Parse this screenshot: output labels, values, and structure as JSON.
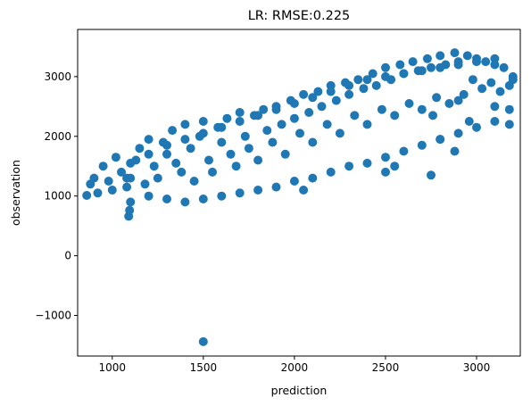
{
  "chart_data": {
    "type": "scatter",
    "title": "LR: RMSE:0.225",
    "xlabel": "prediction",
    "ylabel": "observation",
    "xlim": [
      810,
      3240
    ],
    "ylim": [
      -1680,
      3790
    ],
    "xticks": [
      {
        "value": 1000,
        "label": "1000"
      },
      {
        "value": 1500,
        "label": "1500"
      },
      {
        "value": 2000,
        "label": "2000"
      },
      {
        "value": 2500,
        "label": "2500"
      },
      {
        "value": 3000,
        "label": "3000"
      }
    ],
    "yticks": [
      {
        "value": -1000,
        "label": "−1000"
      },
      {
        "value": 0,
        "label": "0"
      },
      {
        "value": 1000,
        "label": "1000"
      },
      {
        "value": 2000,
        "label": "2000"
      },
      {
        "value": 3000,
        "label": "3000"
      }
    ],
    "grid": false,
    "legend": "none",
    "marker_color": "#1f77b4",
    "series": [
      {
        "x": [
          860,
          880,
          900,
          920,
          950,
          980,
          1000,
          1020,
          1050,
          1080,
          1100,
          1130,
          1150,
          1180,
          1200,
          1230,
          1250,
          1280,
          1300,
          1330,
          1350,
          1380,
          1400,
          1430,
          1450,
          1480,
          1500,
          1530,
          1550,
          1580,
          1600,
          1630,
          1650,
          1680,
          1700,
          1730,
          1750,
          1780,
          1800,
          1830,
          1850,
          1880,
          1900,
          1930,
          1950,
          1980,
          2000,
          2030,
          2050,
          2080,
          2100,
          2130,
          2150,
          2180,
          2200,
          2230,
          2250,
          2280,
          2300,
          2330,
          2350,
          2380,
          2400,
          2430,
          2450,
          2480,
          2500,
          2530,
          2550,
          2580,
          2600,
          2630,
          2650,
          2680,
          2700,
          2730,
          2750,
          2780,
          2800,
          2830,
          2850,
          2880,
          2900,
          2930,
          2950,
          2980,
          3000,
          3030,
          3050,
          3080,
          3100,
          3130,
          3150,
          3180,
          3200,
          1080,
          1100,
          1200,
          1300,
          1400,
          1500,
          1600,
          1700,
          1800,
          1900,
          2000,
          2100,
          2200,
          2300,
          2400,
          2500,
          2600,
          2700,
          2800,
          2900,
          3000,
          3100,
          1100,
          1200,
          1300,
          1400,
          1500,
          1600,
          1700,
          1800,
          1900,
          2000,
          2100,
          2200,
          2300,
          2400,
          2500,
          2600,
          2700,
          2800,
          2900,
          3000,
          3100,
          1500,
          2050,
          2500,
          2550,
          2750,
          2800,
          2880,
          2900,
          3100,
          3180,
          3180,
          3200,
          2960,
          2760,
          1090,
          1095
        ],
        "y": [
          1010,
          1200,
          1300,
          1050,
          1500,
          1250,
          1100,
          1650,
          1400,
          1150,
          1300,
          1600,
          1800,
          1200,
          1950,
          1500,
          1300,
          1900,
          1700,
          2100,
          1550,
          1400,
          2200,
          1800,
          1250,
          2000,
          2250,
          1600,
          1400,
          2150,
          1900,
          2300,
          1700,
          1500,
          2400,
          2000,
          1800,
          2350,
          1600,
          2450,
          2100,
          1900,
          2500,
          2200,
          1700,
          2600,
          2300,
          2050,
          2700,
          2400,
          1900,
          2750,
          2500,
          2200,
          2850,
          2600,
          2050,
          2900,
          2700,
          2350,
          2950,
          2800,
          2200,
          3050,
          2850,
          2450,
          3150,
          2950,
          2350,
          3200,
          3050,
          2550,
          3250,
          3100,
          2450,
          3300,
          3150,
          2650,
          3350,
          3200,
          2550,
          3400,
          3250,
          2700,
          3350,
          2950,
          3300,
          2800,
          3250,
          2900,
          3200,
          2750,
          3150,
          2850,
          3000,
          1300,
          900,
          1000,
          950,
          900,
          950,
          1000,
          1050,
          1100,
          1150,
          1250,
          1300,
          1400,
          1500,
          1550,
          1650,
          1750,
          1850,
          1950,
          2050,
          2150,
          2250,
          1550,
          1700,
          1850,
          1950,
          2050,
          2150,
          2250,
          2350,
          2450,
          2550,
          2650,
          2750,
          2850,
          2950,
          3000,
          3050,
          3100,
          3150,
          3200,
          3250,
          3300,
          -1440,
          1100,
          1400,
          1500,
          1350,
          1950,
          1750,
          2600,
          2500,
          2450,
          2200,
          2950,
          2250,
          2350,
          660,
          760
        ]
      }
    ]
  }
}
